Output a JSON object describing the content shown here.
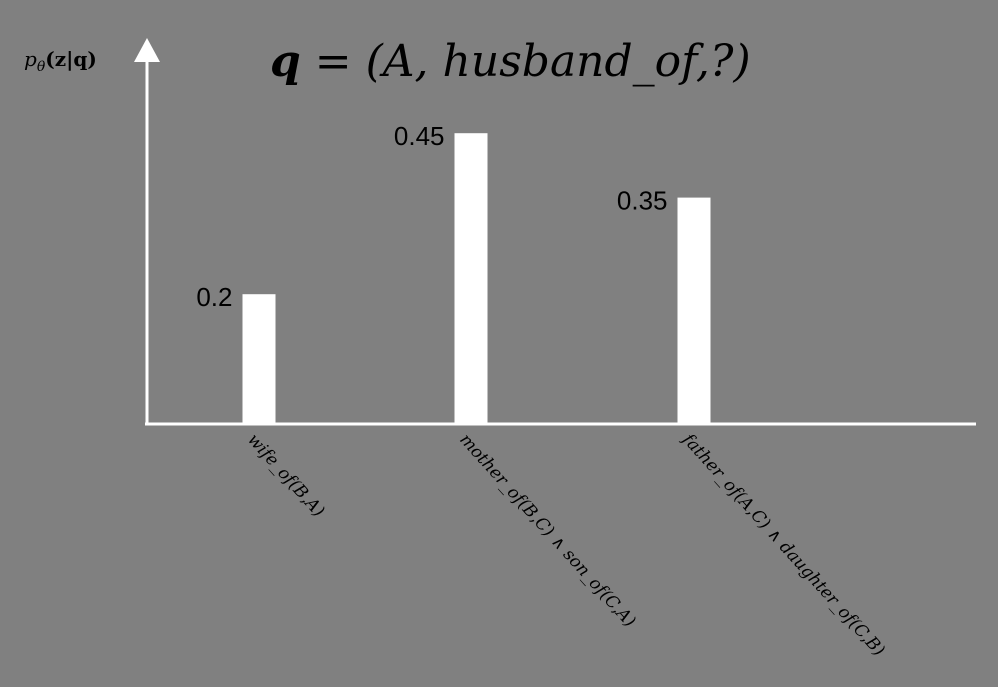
{
  "chart_data": {
    "type": "bar",
    "title_parts": {
      "q": "q",
      "eq": " = ",
      "rest": "(A, husband_of,?)"
    },
    "ylabel_parts": {
      "p": "p",
      "theta": "θ",
      "args": "(z|q)"
    },
    "categories": [
      "wife_of(B,A)",
      "mother_of(B,C) ∧ son_of(C,A)",
      "father_of(A,C) ∧ daughter_of(C,B)"
    ],
    "values": [
      0.2,
      0.45,
      0.35
    ],
    "value_labels": [
      "0.2",
      "0.45",
      "0.35"
    ],
    "ylim": [
      0,
      0.6
    ],
    "grid": false,
    "colors": {
      "background": "#808080",
      "bar": "#ffffff",
      "axis": "#ffffff",
      "text": "#000000"
    }
  }
}
